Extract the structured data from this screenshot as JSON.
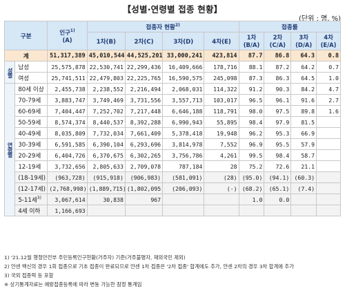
{
  "title": "【성별·연령별 접종 현황】",
  "unit": "(단위 : 명, %)",
  "headers": {
    "category": "구분",
    "population": "인구",
    "population_sup": "1)",
    "population_code": "(A)",
    "vaccinated_group": "접종자 현황",
    "vaccinated_sup": "2)",
    "rate_group": "접종률",
    "dose1": "1차(B)",
    "dose2": "2차(C)",
    "dose3": "3차(D)",
    "dose4": "4차(E)",
    "rate1_top": "1차",
    "rate1_bot": "(B/A)",
    "rate2_top": "2차",
    "rate2_bot": "(C/A)",
    "rate3_top": "3차",
    "rate3_bot": "(D/A)",
    "rate4_top": "4차",
    "rate4_bot": "(E/A)"
  },
  "total": {
    "label": "계",
    "cells": [
      "51,317,389",
      "45,010,544",
      "44,525,201",
      "33,000,241",
      "423,814",
      "87.7",
      "86.8",
      "64.3",
      "0.8"
    ]
  },
  "gender_group": "성별",
  "gender_rows": [
    {
      "label": "남성",
      "cells": [
        "25,575,878",
        "22,530,741",
        "22,299,436",
        "16,409,666",
        "178,716",
        "88.1",
        "87.2",
        "64.2",
        "0.7"
      ]
    },
    {
      "label": "여성",
      "cells": [
        "25,741,511",
        "22,479,803",
        "22,225,765",
        "16,590,575",
        "245,098",
        "87.3",
        "86.3",
        "64.5",
        "1.0"
      ]
    }
  ],
  "age_group": "연령별",
  "age_rows": [
    {
      "label": "80세 이상",
      "cells": [
        "2,455,738",
        "2,238,552",
        "2,216,494",
        "2,068,031",
        "114,322",
        "91.2",
        "90.3",
        "84.2",
        "4.7"
      ]
    },
    {
      "label": "70-79세",
      "cells": [
        "3,883,747",
        "3,749,469",
        "3,731,556",
        "3,557,713",
        "103,017",
        "96.5",
        "96.1",
        "91.6",
        "2.7"
      ]
    },
    {
      "label": "60-69세",
      "cells": [
        "7,404,447",
        "7,252,702",
        "7,217,448",
        "6,646,188",
        "118,791",
        "98.0",
        "97.5",
        "89.8",
        "1.6"
      ]
    },
    {
      "label": "50-59세",
      "cells": [
        "8,574,374",
        "8,440,537",
        "8,392,288",
        "6,990,943",
        "55,895",
        "98.4",
        "97.9",
        "81.5",
        ""
      ]
    },
    {
      "label": "40-49세",
      "cells": [
        "8,035,809",
        "7,732,034",
        "7,661,409",
        "5,378,418",
        "19,948",
        "96.2",
        "95.3",
        "66.9",
        ""
      ]
    },
    {
      "label": "30-39세",
      "cells": [
        "6,591,585",
        "6,390,104",
        "6,293,696",
        "3,814,978",
        "7,552",
        "96.9",
        "95.5",
        "57.9",
        ""
      ]
    },
    {
      "label": "20-29세",
      "cells": [
        "6,404,726",
        "6,370,675",
        "6,302,265",
        "3,756,786",
        "4,261",
        "99.5",
        "98.4",
        "58.7",
        ""
      ]
    },
    {
      "label": "12-19세",
      "cells": [
        "3,732,656",
        "2,805,633",
        "2,709,078",
        "787,184",
        "28",
        "75.2",
        "72.6",
        "21.1",
        ""
      ]
    }
  ],
  "sub_rows": [
    {
      "label": "(18-19세)",
      "cells": [
        "(963,728)",
        "(915,918)",
        "(906,983)",
        "(581,091)",
        "(28)",
        "(95.0)",
        "(94.1)",
        "(60.3)",
        ""
      ]
    },
    {
      "label": "(12-17세)",
      "cells": [
        "(2,768,998)",
        "(1,889,715)",
        "(1,802,095)",
        "(206,093)",
        "(-)",
        "(68.2)",
        "(65.1)",
        "(7.4)",
        ""
      ]
    }
  ],
  "young_rows": [
    {
      "label": "5-11세",
      "sup": "3)",
      "cells": [
        "3,067,614",
        "30,838",
        "967",
        "",
        "",
        "1.0",
        "0.0",
        "",
        ""
      ]
    },
    {
      "label": "4세 이하",
      "sup": "",
      "cells": [
        "1,166,693",
        "",
        "",
        "",
        "",
        "",
        "",
        "",
        ""
      ]
    }
  ],
  "notes": [
    "1) '21.12월 행정안전부 주민등록인구현황(거주자) 기준(거주불명자, 재외국민 제외)",
    "2) 얀센 백신의 경우 1회 접종으로 기초 접종이 완료되므로 얀센 1차 접종은 '2차 접종' 합계에도 추가, 얀센 2차의 경우 3차 합계에 추가",
    "3) 국외 접종력 등 포함",
    "※ 상기통계자료는 예방접종등록에 따라 변동 가능한 잠정 통계임"
  ]
}
